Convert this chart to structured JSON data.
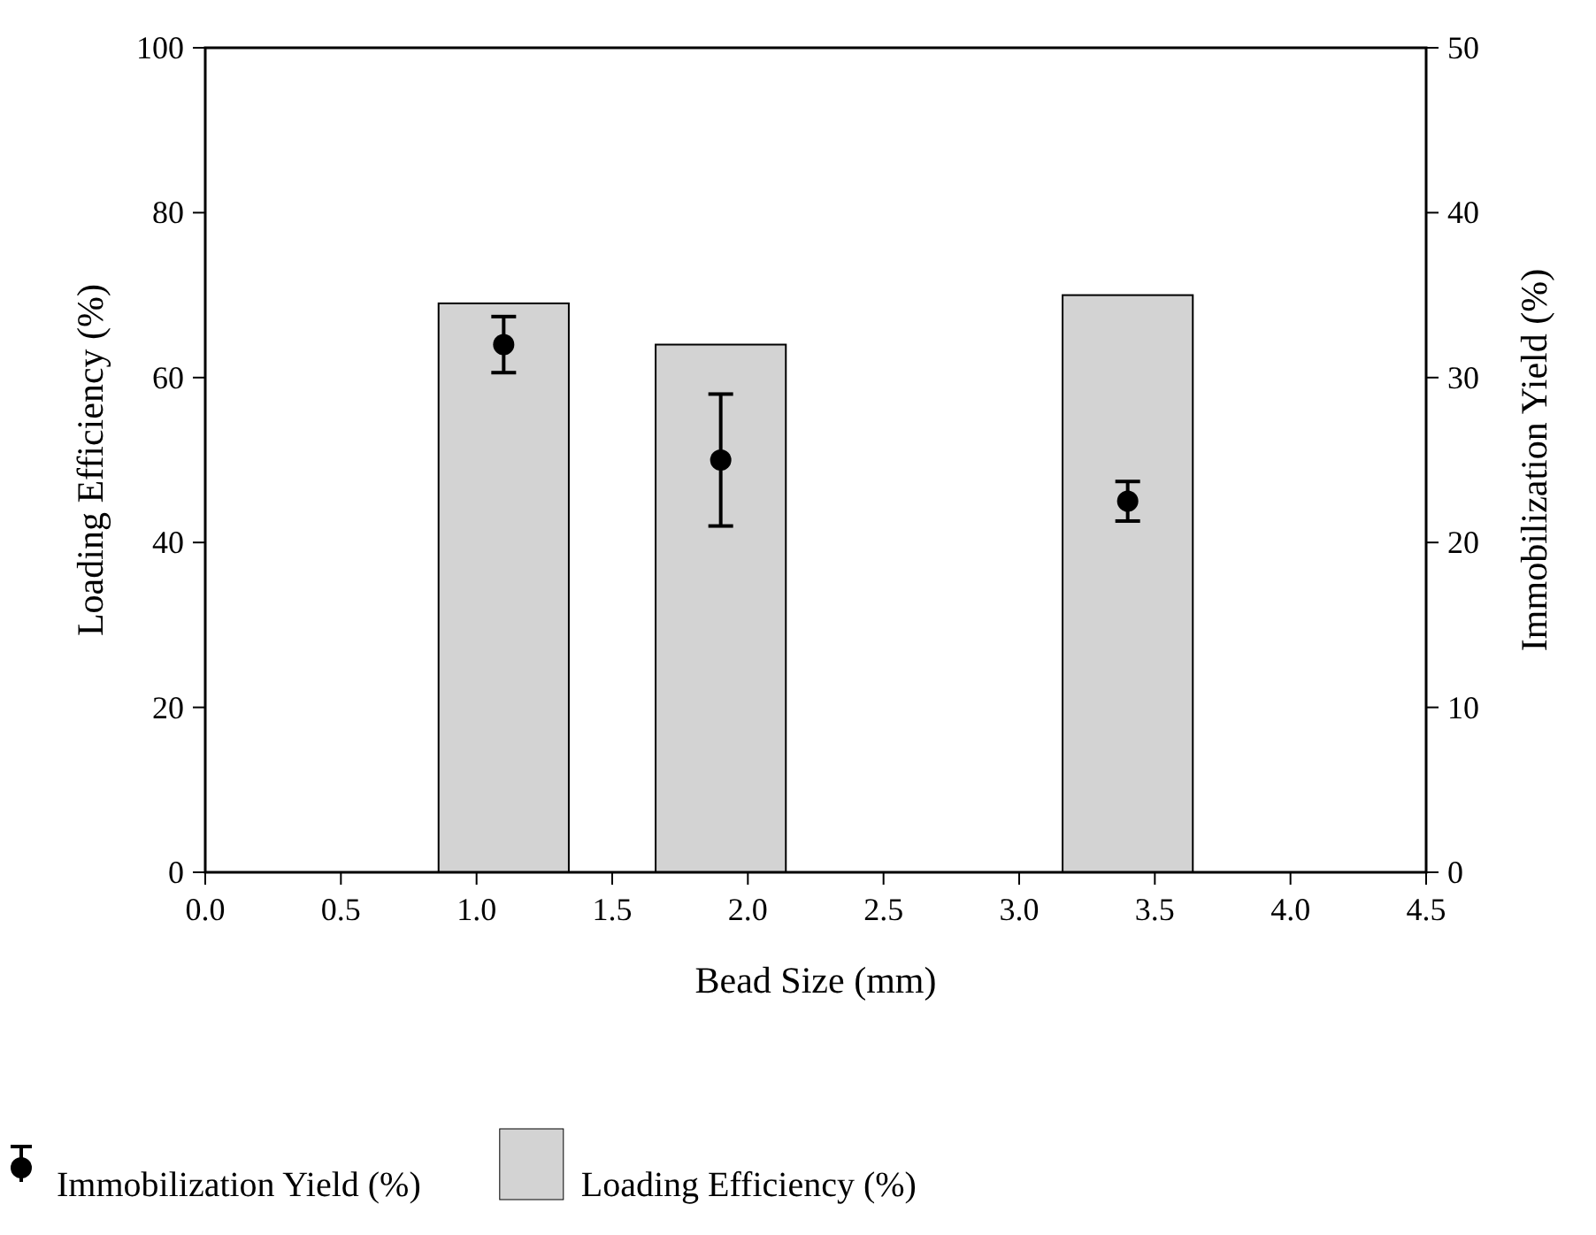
{
  "chart_data": {
    "type": "bar",
    "xlabel": "Bead Size (mm)",
    "ylabel": "Loading Efficiency (%)",
    "y2label": "Immobilization Yield (%)",
    "xlim": [
      0,
      4.5
    ],
    "xticks": [
      {
        "value": 0,
        "label": "0.0"
      },
      {
        "value": 0.5,
        "label": "0.5"
      },
      {
        "value": 1,
        "label": "1.0"
      },
      {
        "value": 1.5,
        "label": "1.5"
      },
      {
        "value": 2,
        "label": "2.0"
      },
      {
        "value": 2.5,
        "label": "2.5"
      },
      {
        "value": 3,
        "label": "3.0"
      },
      {
        "value": 3.5,
        "label": "3.5"
      },
      {
        "value": 4,
        "label": "4.0"
      },
      {
        "value": 4.5,
        "label": "4.5"
      }
    ],
    "ylim": [
      0,
      100
    ],
    "yticks": [
      0,
      20,
      40,
      60,
      80,
      100
    ],
    "y2lim": [
      0,
      50
    ],
    "y2ticks": [
      0,
      10,
      20,
      30,
      40,
      50
    ],
    "legend": "bottom",
    "marker": "circle",
    "series": [
      {
        "name": "Immobilization Yield (%)",
        "type": "scatter",
        "axis": "y2",
        "color": "#000000",
        "x": [
          1.1,
          1.9,
          3.4
        ],
        "values": [
          32,
          25,
          22.5
        ],
        "errors": [
          1.7,
          4,
          1.2
        ]
      },
      {
        "name": "Loading Efficiency (%)",
        "color": "#d3d3d3",
        "x": [
          1.1,
          1.9,
          3.4
        ],
        "values": [
          69,
          64,
          70
        ]
      }
    ]
  }
}
